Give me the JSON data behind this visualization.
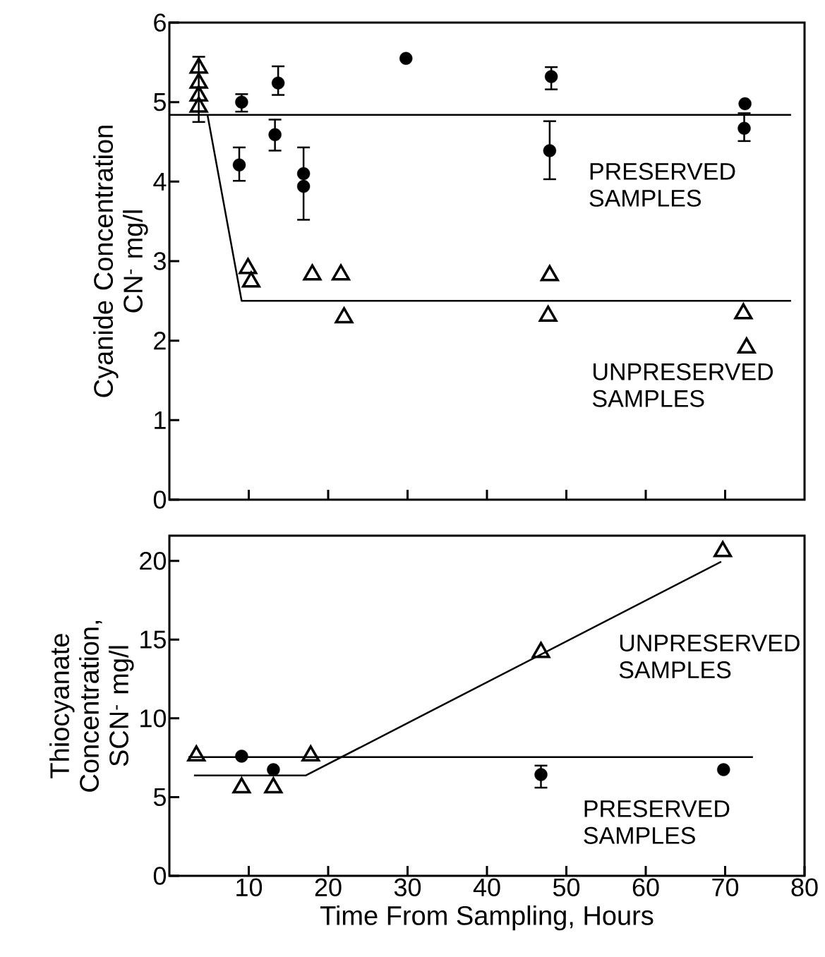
{
  "chart_data": [
    {
      "type": "scatter",
      "ylabel": "Cyanide Concentration CN$^{-}$ mg/l",
      "xlim": [
        0,
        80
      ],
      "ylim": [
        0,
        6
      ],
      "xticks": [
        10,
        20,
        30,
        40,
        50,
        60,
        70
      ],
      "yticks": [
        0,
        1,
        2,
        3,
        4,
        5,
        6
      ],
      "tick_labels": "y",
      "series": [
        {
          "marker": "circle",
          "color": "#000000",
          "x": [
            9.1,
            13.7,
            13.3,
            8.8,
            16.9,
            16.9,
            29.8,
            48.1,
            47.9,
            72.5,
            72.4
          ],
          "values": [
            5.0,
            5.24,
            4.59,
            4.21,
            4.1,
            3.94,
            5.55,
            5.32,
            4.39,
            4.98,
            4.67
          ],
          "errors": [
            [
              4.88,
              5.1
            ],
            [
              5.09,
              5.45
            ],
            [
              4.39,
              4.78
            ],
            [
              4.01,
              4.43
            ],
            null,
            [
              3.52,
              4.43
            ],
            null,
            [
              5.16,
              5.44
            ],
            [
              4.03,
              4.76
            ],
            null,
            [
              4.51,
              4.86
            ]
          ]
        },
        {
          "marker": "triangle",
          "color": "#000000",
          "x": [
            3.7,
            3.7,
            3.7,
            3.7,
            9.9,
            10.3,
            18.0,
            21.6,
            22.0,
            47.9,
            47.7,
            72.3,
            72.7
          ],
          "values": [
            5.43,
            5.24,
            5.08,
            4.94,
            2.91,
            2.74,
            2.83,
            2.83,
            2.29,
            2.82,
            2.31,
            2.34,
            1.91
          ],
          "errors": [
            null,
            null,
            [
              4.75,
              5.57
            ],
            null,
            null,
            null,
            null,
            null,
            null,
            null,
            null,
            null,
            null
          ]
        },
        {
          "type": "line",
          "marker": "none",
          "color": "#000000",
          "x": [
            0,
            78.3
          ],
          "values": [
            4.84,
            4.84
          ]
        },
        {
          "type": "line",
          "marker": "none",
          "color": "#000000",
          "x": [
            4.8,
            9.1,
            78.3
          ],
          "values": [
            4.84,
            2.5,
            2.5
          ]
        }
      ],
      "annotations": [
        "PRESERVED SAMPLES",
        "UNPRESERVED SAMPLES"
      ]
    },
    {
      "type": "scatter",
      "xlabel": "Time From Sampling,  Hours",
      "ylabel": "Thiocyanate Concentration, SCN$^{-}$ mg/l",
      "xlim": [
        0,
        80
      ],
      "ylim": [
        0,
        21.6
      ],
      "xticks": [
        10,
        20,
        30,
        40,
        50,
        60,
        70,
        80
      ],
      "yticks": [
        0,
        5,
        10,
        15,
        20
      ],
      "series": [
        {
          "marker": "circle",
          "color": "#000000",
          "x": [
            9.1,
            13.1,
            46.8,
            69.8
          ],
          "values": [
            7.6,
            6.74,
            6.43,
            6.74
          ],
          "errors": [
            null,
            null,
            [
              5.6,
              7.0
            ],
            null
          ]
        },
        {
          "marker": "triangle",
          "color": "#000000",
          "x": [
            3.4,
            9.1,
            13.1,
            17.8,
            46.8,
            69.7
          ],
          "values": [
            7.63,
            5.6,
            5.6,
            7.63,
            14.2,
            20.6
          ]
        },
        {
          "type": "line",
          "marker": "none",
          "color": "#000000",
          "x": [
            2.4,
            73.5
          ],
          "values": [
            7.54,
            7.54
          ]
        },
        {
          "type": "line",
          "marker": "none",
          "color": "#000000",
          "x": [
            3.1,
            17.2,
            69.5
          ],
          "values": [
            6.38,
            6.38,
            19.95
          ]
        }
      ],
      "annotations": [
        "UNPRESERVED SAMPLES",
        "PRESERVED SAMPLES"
      ]
    }
  ]
}
